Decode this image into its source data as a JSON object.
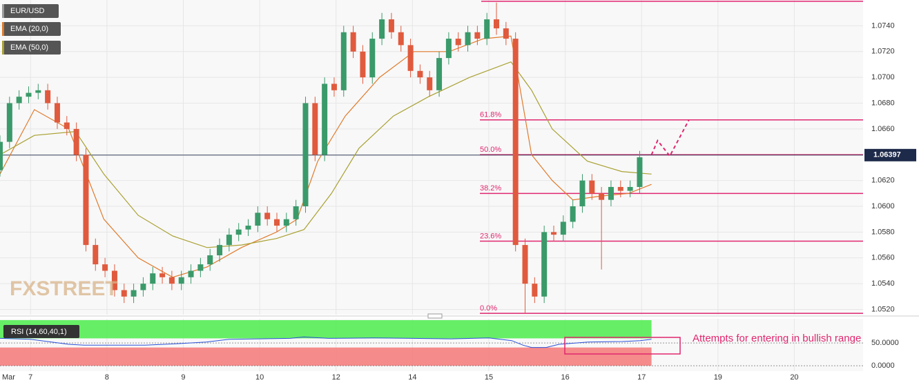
{
  "chart_data": {
    "type": "candlestick",
    "watermark": "FXSTREET",
    "xlim": [
      -0.4,
      10.9
    ],
    "x_start_label": "Mar",
    "xticks": [
      {
        "value": 0,
        "label": "7"
      },
      {
        "value": 1,
        "label": "8"
      },
      {
        "value": 2,
        "label": "9"
      },
      {
        "value": 3,
        "label": "10"
      },
      {
        "value": 4,
        "label": "12"
      },
      {
        "value": 5,
        "label": "14"
      },
      {
        "value": 6,
        "label": "15"
      },
      {
        "value": 7,
        "label": "16"
      },
      {
        "value": 8,
        "label": "17"
      },
      {
        "value": 9,
        "label": "19"
      },
      {
        "value": 10,
        "label": "20"
      }
    ],
    "ylim": [
      1.0516,
      1.076
    ],
    "yticks": [
      {
        "value": 1.052,
        "label": "1.0520"
      },
      {
        "value": 1.054,
        "label": "1.0540"
      },
      {
        "value": 1.056,
        "label": "1.0560"
      },
      {
        "value": 1.058,
        "label": "1.0580"
      },
      {
        "value": 1.06,
        "label": "1.0600"
      },
      {
        "value": 1.062,
        "label": "1.0620"
      },
      {
        "value": 1.064,
        "label": "1.0640"
      },
      {
        "value": 1.066,
        "label": "1.0660"
      },
      {
        "value": 1.068,
        "label": "1.0680"
      },
      {
        "value": 1.07,
        "label": "1.0700"
      },
      {
        "value": 1.072,
        "label": "1.0720"
      },
      {
        "value": 1.074,
        "label": "1.0740"
      }
    ],
    "grid": true,
    "last_price": 1.06397,
    "candles": {
      "name": "EUR/USD",
      "up_color": "#3a9a6a",
      "down_color": "#e05a3e",
      "x": [
        -0.4,
        -0.275,
        -0.15,
        -0.025,
        0.1,
        0.225,
        0.35,
        0.475,
        0.6,
        0.725,
        0.85,
        0.975,
        1.1,
        1.225,
        1.35,
        1.475,
        1.6,
        1.725,
        1.85,
        1.975,
        2.1,
        2.225,
        2.35,
        2.475,
        2.6,
        2.725,
        2.85,
        2.975,
        3.1,
        3.225,
        3.35,
        3.475,
        3.6,
        3.725,
        3.85,
        3.975,
        4.1,
        4.225,
        4.35,
        4.475,
        4.6,
        4.725,
        4.85,
        4.975,
        5.1,
        5.225,
        5.35,
        5.475,
        5.6,
        5.725,
        5.85,
        5.975,
        6.1,
        6.225,
        6.35,
        6.475,
        6.6,
        6.725,
        6.85,
        6.975,
        7.1,
        7.225,
        7.35,
        7.475,
        7.6,
        7.725,
        7.85,
        7.975
      ],
      "open": [
        1.0628,
        1.065,
        1.068,
        1.0685,
        1.0688,
        1.069,
        1.068,
        1.0665,
        1.066,
        1.064,
        1.057,
        1.0555,
        1.055,
        1.0535,
        1.053,
        1.0535,
        1.054,
        1.0548,
        1.0545,
        1.054,
        1.0545,
        1.055,
        1.0555,
        1.0562,
        1.057,
        1.0578,
        1.0582,
        1.0585,
        1.0595,
        1.059,
        1.0585,
        1.059,
        1.06,
        1.068,
        1.064,
        1.0695,
        1.069,
        1.0735,
        1.072,
        1.07,
        1.073,
        1.0745,
        1.0735,
        1.0725,
        1.0705,
        1.07,
        1.069,
        1.0715,
        1.073,
        1.0725,
        1.0735,
        1.073,
        1.0745,
        1.0738,
        1.073,
        1.057,
        1.054,
        1.053,
        1.058,
        1.0578,
        1.0588,
        1.06,
        1.062,
        1.061,
        1.0605,
        1.0615,
        1.0612,
        1.0615
      ],
      "high": [
        1.0655,
        1.0685,
        1.069,
        1.0693,
        1.0695,
        1.0695,
        1.0685,
        1.067,
        1.0665,
        1.0645,
        1.0575,
        1.056,
        1.0555,
        1.054,
        1.054,
        1.0545,
        1.0553,
        1.0553,
        1.055,
        1.055,
        1.0555,
        1.056,
        1.0567,
        1.0575,
        1.0583,
        1.0587,
        1.059,
        1.06,
        1.06,
        1.0595,
        1.0595,
        1.0605,
        1.0685,
        1.0685,
        1.07,
        1.07,
        1.074,
        1.074,
        1.0725,
        1.0735,
        1.075,
        1.075,
        1.074,
        1.073,
        1.071,
        1.0705,
        1.072,
        1.0735,
        1.0735,
        1.074,
        1.074,
        1.075,
        1.0758,
        1.0743,
        1.0735,
        1.0575,
        1.0545,
        1.0585,
        1.0585,
        1.0593,
        1.0605,
        1.0625,
        1.0625,
        1.0615,
        1.062,
        1.062,
        1.062,
        1.0643
      ],
      "low": [
        1.0623,
        1.0645,
        1.0675,
        1.068,
        1.0683,
        1.0675,
        1.066,
        1.0655,
        1.0635,
        1.0565,
        1.055,
        1.0545,
        1.053,
        1.0525,
        1.0525,
        1.053,
        1.0535,
        1.054,
        1.0535,
        1.0535,
        1.054,
        1.0545,
        1.055,
        1.0557,
        1.0565,
        1.0573,
        1.0577,
        1.058,
        1.0585,
        1.058,
        1.058,
        1.0585,
        1.0595,
        1.0635,
        1.0635,
        1.0685,
        1.0685,
        1.0715,
        1.0695,
        1.0695,
        1.0725,
        1.073,
        1.072,
        1.07,
        1.0695,
        1.0685,
        1.0685,
        1.071,
        1.072,
        1.072,
        1.0725,
        1.0725,
        1.0733,
        1.0725,
        1.0565,
        1.0517,
        1.0525,
        1.0525,
        1.0573,
        1.0573,
        1.0583,
        1.0595,
        1.0605,
        1.0551,
        1.06,
        1.0607,
        1.0607,
        1.061
      ],
      "close": [
        1.065,
        1.068,
        1.0685,
        1.0688,
        1.069,
        1.068,
        1.0665,
        1.066,
        1.064,
        1.057,
        1.0555,
        1.055,
        1.0535,
        1.053,
        1.0535,
        1.054,
        1.0548,
        1.0545,
        1.054,
        1.0545,
        1.055,
        1.0555,
        1.0562,
        1.057,
        1.0578,
        1.0582,
        1.0585,
        1.0595,
        1.059,
        1.0585,
        1.059,
        1.06,
        1.068,
        1.064,
        1.0695,
        1.069,
        1.0735,
        1.072,
        1.07,
        1.073,
        1.0745,
        1.0735,
        1.0725,
        1.0705,
        1.07,
        1.069,
        1.0715,
        1.073,
        1.0725,
        1.0735,
        1.073,
        1.0745,
        1.0738,
        1.073,
        1.057,
        1.054,
        1.053,
        1.058,
        1.0578,
        1.0588,
        1.06,
        1.062,
        1.061,
        1.0605,
        1.0615,
        1.0612,
        1.0615,
        1.0638
      ]
    },
    "series": [
      {
        "name": "EMA (20,0)",
        "color": "#e07a2a",
        "x": [
          -0.4,
          0.05,
          0.5,
          0.96,
          1.41,
          1.86,
          2.31,
          2.76,
          3.22,
          3.49,
          3.76,
          4.12,
          4.57,
          5.02,
          5.48,
          5.93,
          6.29,
          6.56,
          6.83,
          7.1,
          7.47,
          7.83,
          8.13
        ],
        "values": [
          1.0625,
          1.0675,
          1.066,
          1.059,
          1.056,
          1.0545,
          1.0553,
          1.0568,
          1.058,
          1.059,
          1.0635,
          1.067,
          1.07,
          1.072,
          1.072,
          1.073,
          1.0732,
          1.064,
          1.062,
          1.0605,
          1.0608,
          1.061,
          1.0617
        ]
      },
      {
        "name": "EMA (50,0)",
        "color": "#a8a030",
        "x": [
          -0.4,
          0.05,
          0.59,
          0.96,
          1.41,
          1.86,
          2.31,
          2.76,
          3.22,
          3.58,
          3.94,
          4.3,
          4.75,
          5.21,
          5.75,
          6.29,
          6.56,
          6.83,
          7.29,
          7.74,
          8.13
        ],
        "values": [
          1.064,
          1.0655,
          1.0658,
          1.0625,
          1.0593,
          1.0577,
          1.0568,
          1.057,
          1.0575,
          1.0582,
          1.061,
          1.0645,
          1.067,
          1.0685,
          1.07,
          1.0712,
          1.069,
          1.066,
          1.0635,
          1.0627,
          1.0625
        ]
      }
    ],
    "projection": {
      "color": "#e0266e",
      "x": [
        8.13,
        8.21,
        8.37,
        8.62
      ],
      "values": [
        1.064,
        1.0651,
        1.0639,
        1.0667
      ]
    },
    "fib_color": "#e0266e",
    "fib_top": 1.0759,
    "fib_levels": [
      {
        "label": "61.8%",
        "value": 1.0667
      },
      {
        "label": "50.0%",
        "value": 1.064
      },
      {
        "label": "38.2%",
        "value": 1.061
      },
      {
        "label": "23.6%",
        "value": 1.0573
      },
      {
        "label": "0.0%",
        "value": 1.0517
      }
    ],
    "rsi": {
      "name": "RSI (14,60,40,1)",
      "color": "#2a50d8",
      "ylim": [
        -12,
        103
      ],
      "yticks": [
        {
          "value": 50,
          "label": "50.0000"
        },
        {
          "value": 0,
          "label": "0.0000"
        }
      ],
      "zones": [
        {
          "from": 60,
          "to": 100,
          "color": "#4cec4c"
        },
        {
          "from": 0,
          "to": 40,
          "color": "#f47878"
        }
      ],
      "x": [
        -0.4,
        0.0,
        0.5,
        0.7,
        1.5,
        1.9,
        2.3,
        2.6,
        3.4,
        3.58,
        3.9,
        4.5,
        5.0,
        5.5,
        6.0,
        6.3,
        6.45,
        6.56,
        6.75,
        6.92,
        7.3,
        7.75,
        7.98,
        8.13
      ],
      "values": [
        60,
        58,
        47,
        45,
        45,
        48,
        52,
        58,
        60,
        63,
        60,
        61,
        60,
        59,
        61,
        55,
        45,
        40,
        40,
        47,
        52,
        53,
        55,
        58
      ]
    },
    "annotation": "Attempts for entering  in bullish range"
  }
}
